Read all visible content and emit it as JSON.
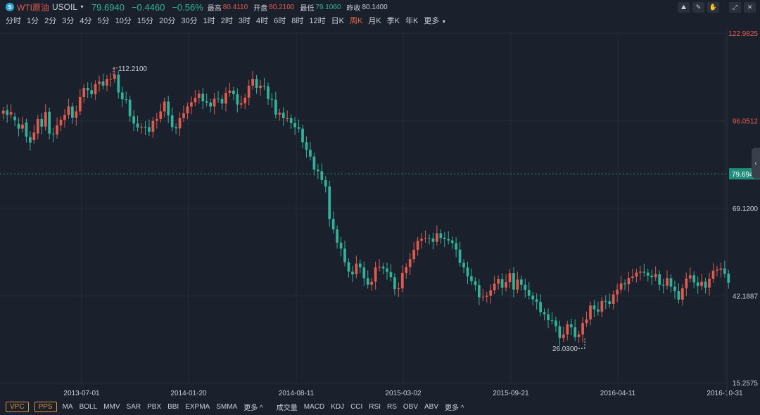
{
  "header": {
    "logo": "S",
    "name": "WTI原油",
    "code": "USOIL",
    "price": "79.6940",
    "change": "−0.4460",
    "change_pct": "−0.56%",
    "high_label": "最高",
    "high": "80.4110",
    "open_label": "开盘",
    "open": "80.2100",
    "low_label": "最低",
    "low": "79.1060",
    "prev_label": "昨收",
    "prev": "80.1400"
  },
  "toolbar": {
    "icons": [
      "chart-line-icon",
      "pencil-icon",
      "magnet-icon",
      "fullscreen-icon",
      "close-icon"
    ],
    "glyphs": [
      "⛰",
      "✎",
      "✋",
      "⤢",
      "✕"
    ]
  },
  "periods": [
    "分时",
    "1分",
    "2分",
    "3分",
    "4分",
    "5分",
    "10分",
    "15分",
    "20分",
    "30分",
    "1时",
    "2时",
    "3时",
    "4时",
    "6时",
    "8时",
    "12时",
    "日K",
    "周K",
    "月K",
    "季K",
    "年K",
    "更多"
  ],
  "active_period": "周K",
  "indicators": {
    "pills": [
      "VPC",
      "PPS"
    ],
    "main": [
      "MA",
      "BOLL",
      "MMV",
      "SAR",
      "PBX",
      "BBI",
      "EXPMA",
      "SMMA",
      "更多 ^"
    ],
    "sub": [
      "成交量",
      "MACD",
      "KDJ",
      "CCI",
      "RSI",
      "RS",
      "OBV",
      "ABV",
      "更多 ^"
    ]
  },
  "colors": {
    "up": "#e05a4e",
    "down": "#2fb39a",
    "grid": "#252c38",
    "label": "#c9ced6"
  },
  "chart_data": {
    "type": "candlestick",
    "y_ticks": [
      122.9825,
      96.0512,
      69.12,
      42.1887,
      15.2575
    ],
    "y_tick_labels": [
      "122.9825",
      "96.0512",
      "69.1200",
      "42.1887",
      "15.2575"
    ],
    "ylim": [
      15.2575,
      122.9825
    ],
    "x_ticks": [
      "2013-07-01",
      "2014-01-20",
      "2014-08-11",
      "2015-03-02",
      "2015-09-21",
      "2016-04-11",
      "2016-10-31"
    ],
    "current_price": 79.694,
    "current_price_label": "79.6940",
    "max_annotation": {
      "value": 112.21,
      "label": "112.2100"
    },
    "min_annotation": {
      "value": 26.03,
      "label": "26.0300"
    },
    "closes": [
      99.1,
      97.8,
      98.7,
      96.2,
      93.6,
      94.8,
      91.1,
      89.3,
      92.4,
      96.6,
      94.2,
      98.7,
      92.1,
      91.8,
      94.6,
      96.3,
      97.8,
      100.4,
      96.9,
      98.9,
      103.3,
      106.1,
      105.4,
      104.2,
      107.3,
      108.1,
      106.8,
      108.9,
      108.9,
      110.2,
      104.7,
      102.6,
      102.5,
      97.4,
      95.2,
      93.9,
      94.1,
      94.0,
      92.6,
      96.0,
      96.6,
      98.9,
      101.9,
      97.7,
      94.0,
      93.7,
      96.8,
      98.3,
      100.4,
      101.7,
      103.1,
      104.3,
      102.0,
      101.6,
      100.4,
      102.8,
      102.7,
      101.3,
      104.6,
      105.3,
      104.2,
      101.0,
      101.4,
      103.1,
      106.8,
      108.9,
      106.1,
      106.8,
      106.6,
      102.7,
      102.5,
      97.9,
      98.5,
      96.8,
      96.8,
      95.3,
      94.0,
      93.6,
      89.4,
      87.1,
      85.0,
      81.0,
      80.5,
      77.8,
      75.8,
      65.8,
      62.6,
      58.5,
      56.7,
      52.5,
      49.6,
      48.8,
      52.1,
      50.9,
      47.6,
      45.6,
      46.5,
      50.9,
      51.1,
      50.6,
      49.5,
      47.9,
      44.2,
      44.5,
      49.2,
      51.0,
      53.5,
      56.3,
      59.1,
      59.7,
      59.9,
      59.8,
      58.8,
      61.4,
      60.0,
      59.6,
      59.2,
      58.4,
      56.4,
      52.3,
      50.9,
      48.2,
      46.7,
      45.5,
      41.7,
      41.9,
      42.2,
      43.9,
      45.9,
      47.3,
      44.7,
      46.4,
      49.2,
      44.1,
      47.2,
      45.6,
      44.0,
      42.2,
      41.1,
      40.3,
      37.1,
      36.5,
      34.7,
      34.6,
      32.8,
      29.2,
      30.3,
      33.4,
      32.5,
      29.5,
      30.3,
      33.8,
      34.9,
      39.2,
      38.0,
      37.3,
      40.6,
      40.5,
      39.7,
      42.6,
      44.1,
      46.0,
      45.7,
      47.7,
      48.1,
      49.3,
      49.6,
      49.3,
      48.4,
      47.9,
      48.8,
      45.6,
      45.3,
      47.6,
      45.0,
      43.6,
      41.0,
      44.5,
      47.5,
      48.5,
      46.3,
      45.2,
      46.5,
      44.7,
      47.4,
      49.9,
      50.2,
      50.6,
      49.0,
      46.2
    ],
    "opens": [
      98.2,
      99.2,
      97.9,
      97.3,
      95.1,
      93.6,
      95.5,
      91.0,
      90.1,
      92.1,
      96.6,
      94.2,
      98.8,
      92.0,
      91.8,
      94.6,
      96.3,
      97.8,
      100.4,
      96.9,
      98.9,
      103.3,
      106.1,
      105.4,
      104.2,
      107.3,
      108.1,
      106.8,
      108.9,
      108.9,
      110.2,
      104.7,
      102.6,
      102.5,
      97.4,
      95.2,
      93.9,
      94.1,
      94.0,
      92.6,
      96.0,
      96.6,
      98.9,
      101.9,
      97.7,
      94.0,
      93.7,
      96.8,
      98.3,
      100.4,
      101.7,
      103.1,
      104.3,
      102.0,
      101.6,
      100.4,
      102.8,
      102.7,
      101.3,
      104.6,
      105.3,
      104.2,
      101.0,
      101.4,
      103.1,
      106.8,
      108.9,
      106.1,
      106.8,
      106.6,
      102.7,
      102.5,
      97.9,
      98.5,
      96.8,
      96.8,
      95.3,
      94.0,
      93.6,
      89.4,
      87.1,
      85.0,
      81.0,
      80.5,
      77.8,
      75.8,
      65.8,
      62.6,
      58.5,
      56.7,
      52.5,
      49.6,
      48.8,
      52.1,
      50.9,
      47.6,
      45.6,
      46.5,
      50.9,
      51.1,
      50.6,
      49.5,
      47.9,
      44.2,
      44.5,
      49.2,
      51.0,
      53.5,
      56.3,
      59.1,
      59.7,
      59.9,
      59.8,
      58.8,
      61.4,
      60.0,
      59.6,
      59.2,
      58.4,
      56.4,
      52.3,
      50.9,
      48.2,
      46.7,
      45.5,
      41.7,
      41.9,
      42.2,
      43.9,
      45.9,
      47.3,
      44.7,
      46.4,
      49.2,
      44.1,
      47.2,
      45.6,
      44.0,
      42.2,
      41.1,
      40.3,
      37.1,
      36.5,
      34.7,
      34.6,
      32.8,
      29.2,
      30.3,
      33.4,
      32.5,
      29.5,
      30.3,
      33.8,
      34.9,
      39.2,
      38.0,
      37.3,
      40.6,
      40.5,
      39.7,
      42.6,
      44.1,
      46.0,
      45.7,
      47.7,
      48.1,
      49.3,
      49.6,
      49.3,
      48.4,
      47.9,
      48.8,
      45.6,
      45.3,
      47.6,
      45.0,
      43.6,
      41.0,
      44.5,
      47.5,
      48.5,
      46.3,
      45.2,
      46.5,
      44.7,
      47.4,
      49.9,
      50.2,
      50.6,
      49.0
    ]
  }
}
